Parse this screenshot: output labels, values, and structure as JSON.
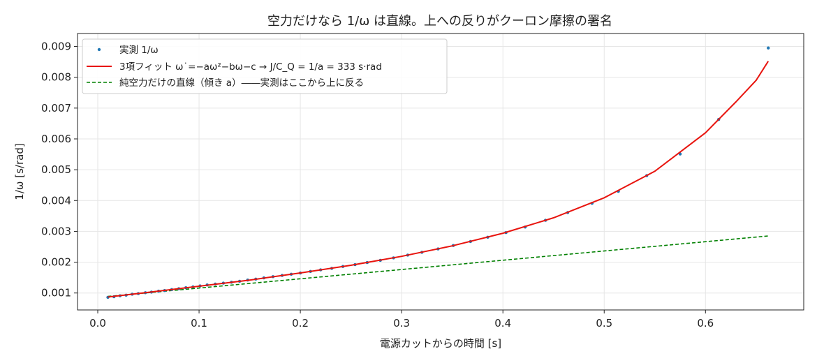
{
  "chart_data": {
    "type": "scatter",
    "title": "空力だけなら 1/ω は直線。上への反りがクーロン摩擦の署名",
    "xlabel": "電源カットからの時間 [s]",
    "ylabel": "1/ω [s/rad]",
    "xlim": [
      -0.02,
      0.697
    ],
    "ylim": [
      0.00045,
      0.00942
    ],
    "xticks": [
      0.0,
      0.1,
      0.2,
      0.3,
      0.4,
      0.5,
      0.6
    ],
    "xtick_labels": [
      "0.0",
      "0.1",
      "0.2",
      "0.3",
      "0.4",
      "0.5",
      "0.6"
    ],
    "yticks": [
      0.001,
      0.002,
      0.003,
      0.004,
      0.005,
      0.006,
      0.007,
      0.008,
      0.009
    ],
    "ytick_labels": [
      "0.001",
      "0.002",
      "0.003",
      "0.004",
      "0.005",
      "0.006",
      "0.007",
      "0.008",
      "0.009"
    ],
    "grid": true,
    "legend_position": "top-left",
    "series": [
      {
        "name": "実測 1/ω",
        "kind": "scatter",
        "color": "#1f77b4",
        "points": [
          [
            0.01,
            0.00086
          ],
          [
            0.016,
            0.00088
          ],
          [
            0.022,
            0.00091
          ],
          [
            0.028,
            0.00093
          ],
          [
            0.034,
            0.00096
          ],
          [
            0.04,
            0.00098
          ],
          [
            0.047,
            0.00101
          ],
          [
            0.053,
            0.00103
          ],
          [
            0.06,
            0.00106
          ],
          [
            0.066,
            0.00108
          ],
          [
            0.073,
            0.00111
          ],
          [
            0.08,
            0.00114
          ],
          [
            0.087,
            0.00117
          ],
          [
            0.094,
            0.0012
          ],
          [
            0.101,
            0.00123
          ],
          [
            0.108,
            0.00126
          ],
          [
            0.116,
            0.00129
          ],
          [
            0.124,
            0.00132
          ],
          [
            0.132,
            0.00135
          ],
          [
            0.14,
            0.00138
          ],
          [
            0.148,
            0.00142
          ],
          [
            0.156,
            0.00145
          ],
          [
            0.164,
            0.00149
          ],
          [
            0.173,
            0.00153
          ],
          [
            0.182,
            0.00157
          ],
          [
            0.191,
            0.00161
          ],
          [
            0.2,
            0.00165
          ],
          [
            0.21,
            0.0017
          ],
          [
            0.22,
            0.00175
          ],
          [
            0.231,
            0.0018
          ],
          [
            0.242,
            0.00186
          ],
          [
            0.254,
            0.00192
          ],
          [
            0.266,
            0.00199
          ],
          [
            0.279,
            0.00206
          ],
          [
            0.292,
            0.00214
          ],
          [
            0.306,
            0.00223
          ],
          [
            0.32,
            0.00232
          ],
          [
            0.336,
            0.00243
          ],
          [
            0.351,
            0.00254
          ],
          [
            0.368,
            0.00267
          ],
          [
            0.385,
            0.00281
          ],
          [
            0.403,
            0.00296
          ],
          [
            0.422,
            0.00314
          ],
          [
            0.442,
            0.00336
          ],
          [
            0.464,
            0.00361
          ],
          [
            0.488,
            0.00391
          ],
          [
            0.514,
            0.0043
          ],
          [
            0.542,
            0.00481
          ],
          [
            0.575,
            0.00551
          ],
          [
            0.613,
            0.00663
          ],
          [
            0.662,
            0.00895
          ]
        ]
      },
      {
        "name": "3項フィット  ω˙=−aω²−bω−c → J/C_Q = 1/a = 333 s·rad",
        "kind": "line",
        "color": "#e8140e",
        "points": [
          [
            0.01,
            0.00087
          ],
          [
            0.05,
            0.00102
          ],
          [
            0.1,
            0.00122
          ],
          [
            0.15,
            0.00142
          ],
          [
            0.2,
            0.00165
          ],
          [
            0.25,
            0.0019
          ],
          [
            0.3,
            0.00219
          ],
          [
            0.35,
            0.00253
          ],
          [
            0.4,
            0.00294
          ],
          [
            0.45,
            0.00344
          ],
          [
            0.5,
            0.00409
          ],
          [
            0.55,
            0.00495
          ],
          [
            0.6,
            0.0062
          ],
          [
            0.63,
            0.0072
          ],
          [
            0.65,
            0.0079
          ],
          [
            0.662,
            0.00852
          ]
        ]
      },
      {
        "name": "純空力だけの直線（傾き a）――実測はここから上に反る",
        "kind": "line",
        "dashed": true,
        "color": "#008000",
        "points": [
          [
            0.01,
            0.00089
          ],
          [
            0.662,
            0.00285
          ]
        ]
      }
    ]
  }
}
